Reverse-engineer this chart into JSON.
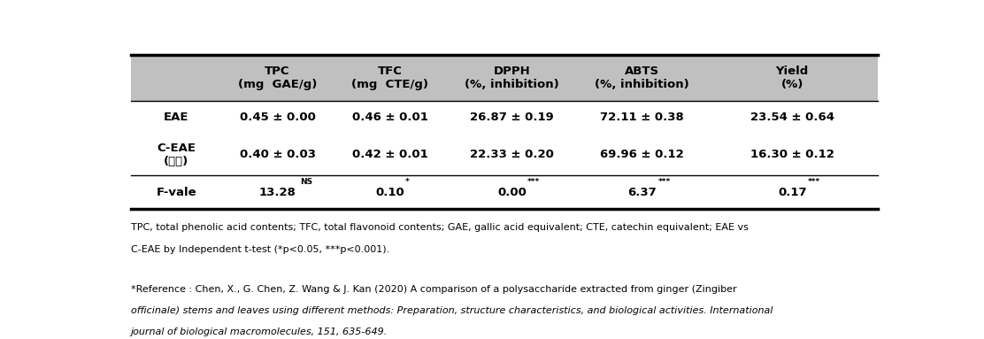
{
  "bg_color": "#ffffff",
  "header_bg": "#c0c0c0",
  "col_headers": [
    "",
    "TPC\n(mg  GAE/g)",
    "TFC\n(mg  CTE/g)",
    "DPPH\n(%, inhibition)",
    "ABTS\n(%, inhibition)",
    "Yield\n(%)"
  ],
  "row1_label": "EAE",
  "row1_values": [
    "0.45 ± 0.00",
    "0.46 ± 0.01",
    "26.87 ± 0.19",
    "72.11 ± 0.38",
    "23.54 ± 0.64"
  ],
  "row2_label_1": "C-EAE",
  "row2_label_2": "(기존)",
  "row2_values": [
    "0.40 ± 0.03",
    "0.42 ± 0.01",
    "22.33 ± 0.20",
    "69.96 ± 0.12",
    "16.30 ± 0.12"
  ],
  "row3_label": "F-vale",
  "row3_values": [
    "13.28",
    "0.10",
    "0.00",
    "6.37",
    "0.17"
  ],
  "row3_superscripts": [
    "NS",
    "*",
    "***",
    "***",
    "***"
  ],
  "footnote1_line1": "TPC, total phenolic acid contents; TFC, total flavonoid contents; GAE, gallic acid equivalent; CTE, catechin equivalent; EAE vs",
  "footnote1_line2": "C-EAE by Independent t-test (*p<0.05, ***p<0.001).",
  "footnote2_line1": "*Reference : Chen, X., G. Chen, Z. Wang & J. Kan (2020) A comparison of a polysaccharide extracted from ginger (Zingiber",
  "footnote2_line2": "officinale) stems and leaves using different methods: Preparation, structure characteristics, and biological activities. International",
  "footnote2_line3": "journal of biological macromolecules, 151, 635-649."
}
